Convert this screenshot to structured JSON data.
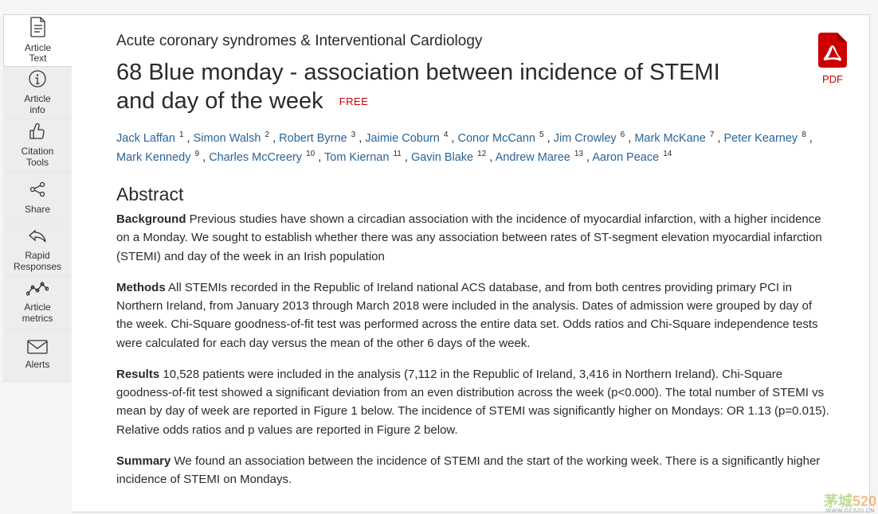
{
  "sidebar": {
    "items": [
      {
        "label": "Article\nText",
        "name": "article-text",
        "icon": "document-icon"
      },
      {
        "label": "Article\ninfo",
        "name": "article-info",
        "icon": "info-icon"
      },
      {
        "label": "Citation\nTools",
        "name": "citation-tools",
        "icon": "thumbs-up-icon"
      },
      {
        "label": "Share",
        "name": "share",
        "icon": "share-icon"
      },
      {
        "label": "Rapid\nResponses",
        "name": "rapid-responses",
        "icon": "reply-icon"
      },
      {
        "label": "Article\nmetrics",
        "name": "article-metrics",
        "icon": "metrics-icon"
      },
      {
        "label": "Alerts",
        "name": "alerts",
        "icon": "mail-icon"
      }
    ]
  },
  "pdf_label": "PDF",
  "category": "Acute coronary syndromes & Interventional Cardiology",
  "title": "68 Blue monday - association between incidence of STEMI and day of the week",
  "free_badge": "FREE",
  "authors": [
    {
      "name": "Jack Laffan",
      "aff": "1"
    },
    {
      "name": "Simon Walsh",
      "aff": "2"
    },
    {
      "name": "Robert Byrne",
      "aff": "3"
    },
    {
      "name": "Jaimie Coburn",
      "aff": "4"
    },
    {
      "name": "Conor McCann",
      "aff": "5"
    },
    {
      "name": "Jim Crowley",
      "aff": "6"
    },
    {
      "name": "Mark McKane",
      "aff": "7"
    },
    {
      "name": "Peter Kearney",
      "aff": "8"
    },
    {
      "name": "Mark Kennedy",
      "aff": "9"
    },
    {
      "name": "Charles McCreery",
      "aff": "10"
    },
    {
      "name": "Tom Kiernan",
      "aff": "11"
    },
    {
      "name": "Gavin Blake",
      "aff": "12"
    },
    {
      "name": "Andrew Maree",
      "aff": "13"
    },
    {
      "name": "Aaron Peace",
      "aff": "14"
    }
  ],
  "abstract_heading": "Abstract",
  "abstract": {
    "background_label": "Background",
    "background_text": " Previous studies have shown a circadian association with the incidence of myocardial infarction, with a higher incidence on a Monday. We sought to establish whether there was any association between rates of ST-segment elevation myocardial infarction (STEMI) and day of the week in an Irish population",
    "methods_label": "Methods",
    "methods_text": " All STEMIs recorded in the Republic of Ireland national ACS database, and from both centres providing primary PCI in Northern Ireland, from January 2013 through March 2018 were included in the analysis. Dates of admission were grouped by day of the week. Chi-Square goodness-of-fit test was performed across the entire data set. Odds ratios and Chi-Square independence tests were calculated for each day versus the mean of the other 6 days of the week.",
    "results_label": "Results",
    "results_text": " 10,528 patients were included in the analysis (7,112 in the Republic of Ireland, 3,416 in Northern Ireland). Chi-Square goodness-of-fit test showed a significant deviation from an even distribution across the week (p<0.000). The total number of STEMI vs mean by day of week are reported in Figure 1 below. The incidence of STEMI was significantly higher on Mondays: OR 1.13 (p=0.015). Relative odds ratios and p values are reported in Figure 2 below.",
    "summary_label": "Summary",
    "summary_text": " We found an association between the incidence of STEMI and the start of the working week. There is a significantly higher incidence of STEMI on Mondays."
  },
  "colors": {
    "link": "#2a6496",
    "accent_red": "#cc0000",
    "sidebar_bg": "#ededed",
    "active_bg": "#ffffff",
    "border": "#d6d6d6",
    "text": "#2a2a2a"
  },
  "watermark": {
    "part1": "茅城",
    "part2": "520",
    "sub": "WWW.GC520.CN"
  }
}
